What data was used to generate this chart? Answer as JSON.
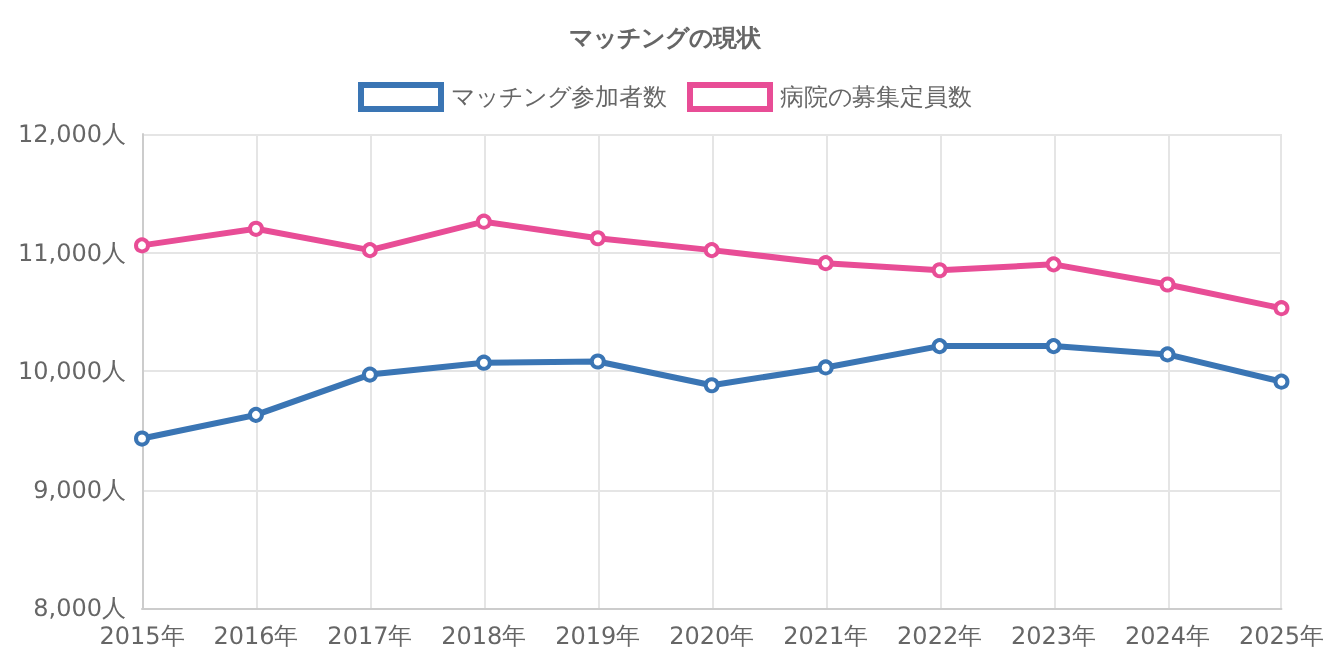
{
  "chart_data": {
    "type": "line",
    "title": "マッチングの現状",
    "categories": [
      "2015年",
      "2016年",
      "2017年",
      "2018年",
      "2019年",
      "2020年",
      "2021年",
      "2022年",
      "2023年",
      "2024年",
      "2025年"
    ],
    "series": [
      {
        "name": "マッチング参加者数",
        "color": "#3a75b4",
        "values": [
          9430,
          9630,
          9970,
          10070,
          10080,
          9880,
          10030,
          10210,
          10210,
          10140,
          9910
        ]
      },
      {
        "name": "病院の募集定員数",
        "color": "#e84d96",
        "values": [
          11060,
          11200,
          11020,
          11260,
          11120,
          11020,
          10910,
          10850,
          10900,
          10730,
          10530
        ]
      }
    ],
    "ylim": [
      8000,
      12000
    ],
    "yticks": [
      {
        "value": 8000,
        "label": "8,000人"
      },
      {
        "value": 9000,
        "label": "9,000人"
      },
      {
        "value": 10000,
        "label": "10,000人"
      },
      {
        "value": 11000,
        "label": "11,000人"
      },
      {
        "value": 12000,
        "label": "12,000人"
      }
    ],
    "grid": true,
    "legend": "top",
    "marker": "circle",
    "line_style": "solid"
  }
}
